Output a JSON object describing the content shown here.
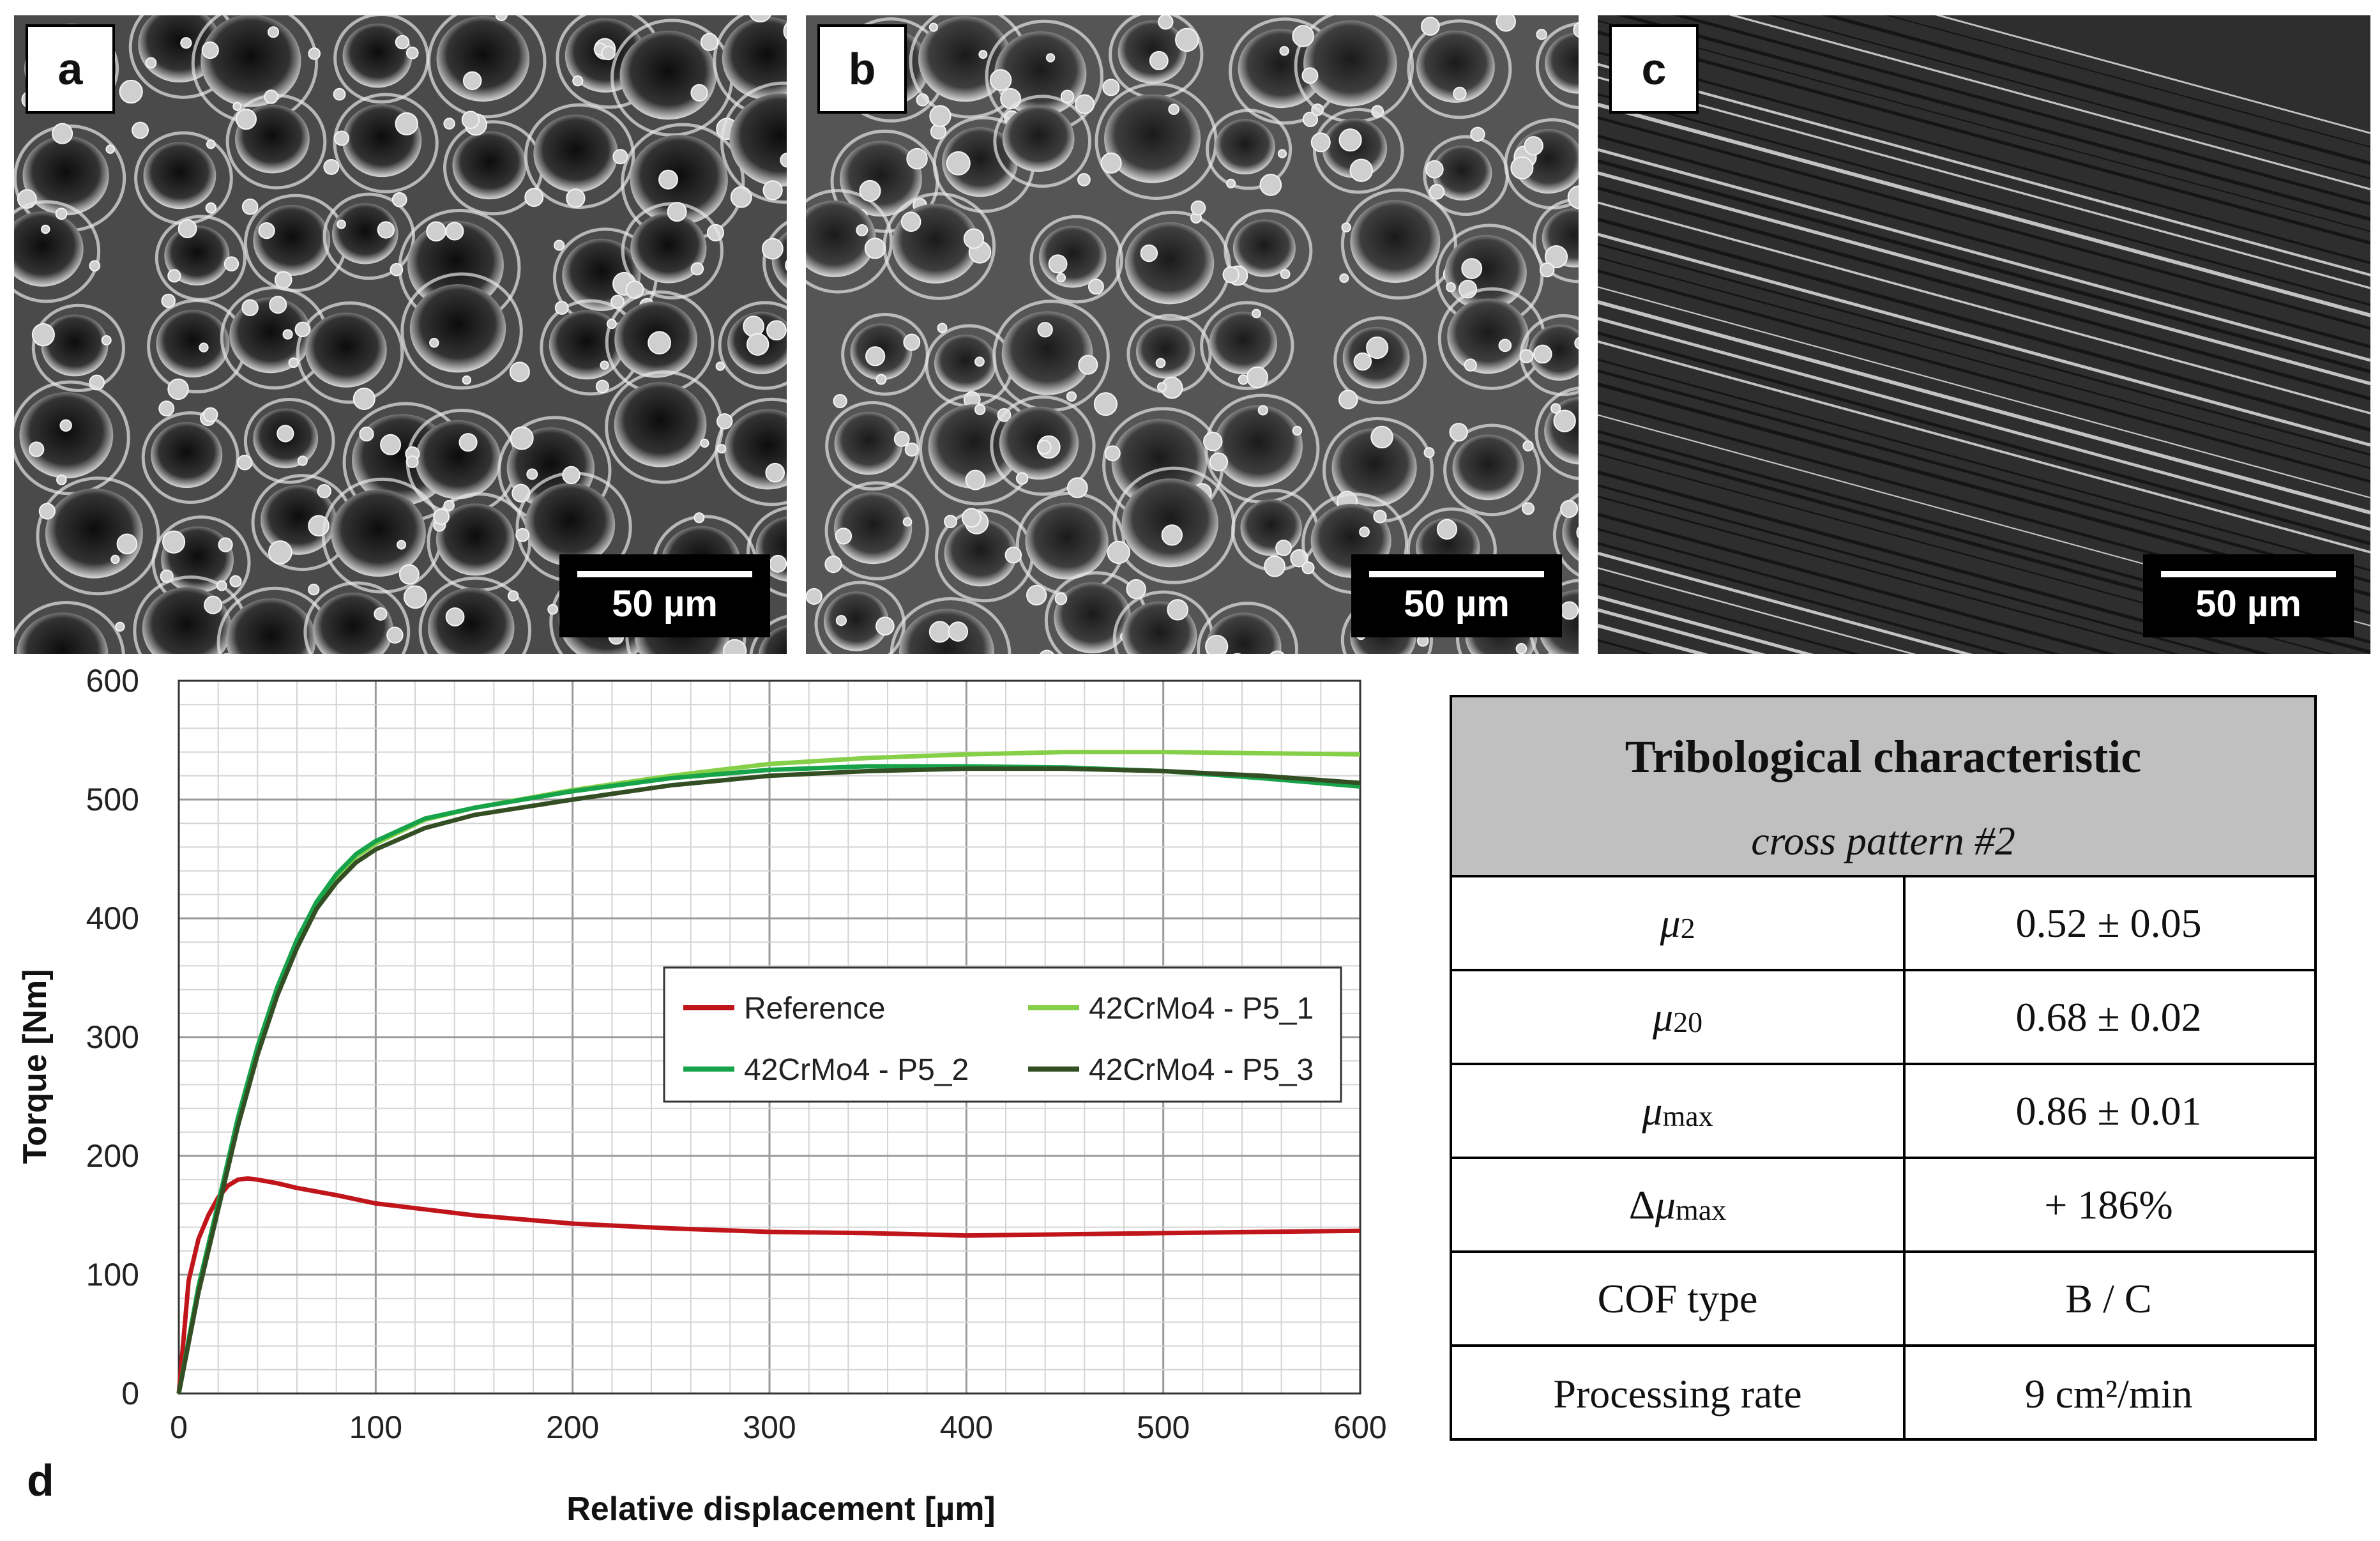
{
  "panels": [
    {
      "letter": "a",
      "scale": "50 µm"
    },
    {
      "letter": "b",
      "scale": "50 µm"
    },
    {
      "letter": "c",
      "scale": "50 µm"
    }
  ],
  "panel_d_letter": "d",
  "chart_data": {
    "type": "line",
    "title": "",
    "xlabel": "Relative displacement [µm]",
    "ylabel": "Torque [Nm]",
    "xlim": [
      0,
      600
    ],
    "ylim": [
      0,
      600
    ],
    "xticks": [
      0,
      100,
      200,
      300,
      400,
      500,
      600
    ],
    "yticks": [
      0,
      100,
      200,
      300,
      400,
      500,
      600
    ],
    "grid": true,
    "legend_position": "center-right",
    "series": [
      {
        "name": "Reference",
        "color": "#c0151b",
        "x": [
          0,
          5,
          10,
          15,
          20,
          25,
          30,
          35,
          40,
          50,
          60,
          80,
          100,
          125,
          150,
          200,
          250,
          300,
          350,
          400,
          450,
          500,
          550,
          600
        ],
        "y": [
          0,
          95,
          130,
          150,
          165,
          175,
          180,
          181,
          180,
          177,
          173,
          167,
          160,
          155,
          150,
          143,
          139,
          136,
          135,
          133,
          134,
          135,
          136,
          137
        ]
      },
      {
        "name": "42CrMo4 - P5_1",
        "color": "#86cf48",
        "x": [
          0,
          10,
          20,
          30,
          40,
          50,
          60,
          70,
          80,
          90,
          100,
          125,
          150,
          200,
          250,
          300,
          350,
          400,
          450,
          500,
          550,
          600
        ],
        "y": [
          0,
          90,
          160,
          230,
          290,
          340,
          380,
          412,
          435,
          452,
          463,
          483,
          493,
          508,
          520,
          530,
          535,
          538,
          540,
          540,
          539,
          538
        ]
      },
      {
        "name": "42CrMo4 - P5_2",
        "color": "#16a34a",
        "x": [
          0,
          10,
          20,
          30,
          40,
          50,
          60,
          70,
          80,
          90,
          100,
          125,
          150,
          200,
          250,
          300,
          350,
          400,
          450,
          500,
          550,
          600
        ],
        "y": [
          0,
          90,
          160,
          232,
          292,
          342,
          382,
          414,
          437,
          454,
          465,
          484,
          493,
          507,
          518,
          525,
          528,
          528,
          527,
          524,
          518,
          511
        ]
      },
      {
        "name": "42CrMo4 - P5_3",
        "color": "#344e24",
        "x": [
          0,
          10,
          20,
          30,
          40,
          50,
          60,
          70,
          80,
          90,
          100,
          125,
          150,
          200,
          250,
          300,
          350,
          400,
          450,
          500,
          550,
          600
        ],
        "y": [
          0,
          85,
          155,
          225,
          285,
          335,
          375,
          408,
          430,
          447,
          458,
          476,
          487,
          500,
          512,
          520,
          524,
          526,
          526,
          524,
          520,
          514
        ]
      }
    ]
  },
  "table": {
    "title": "Tribological characteristic",
    "subtitle": "cross pattern #2",
    "rows": [
      {
        "mu": "μ",
        "sub": "2",
        "prefix": "",
        "value": "0.52 ± 0.05"
      },
      {
        "mu": "μ",
        "sub": "20",
        "prefix": "",
        "value": "0.68 ± 0.02"
      },
      {
        "mu": "μ",
        "sub": "max",
        "prefix": "",
        "value": "0.86 ± 0.01"
      },
      {
        "mu": "μ",
        "sub": "max",
        "prefix": "Δ ",
        "value": "+ 186%"
      },
      {
        "label": "COF type",
        "value": "B / C"
      },
      {
        "label": "Processing rate",
        "value": "9 cm²/min"
      }
    ]
  }
}
